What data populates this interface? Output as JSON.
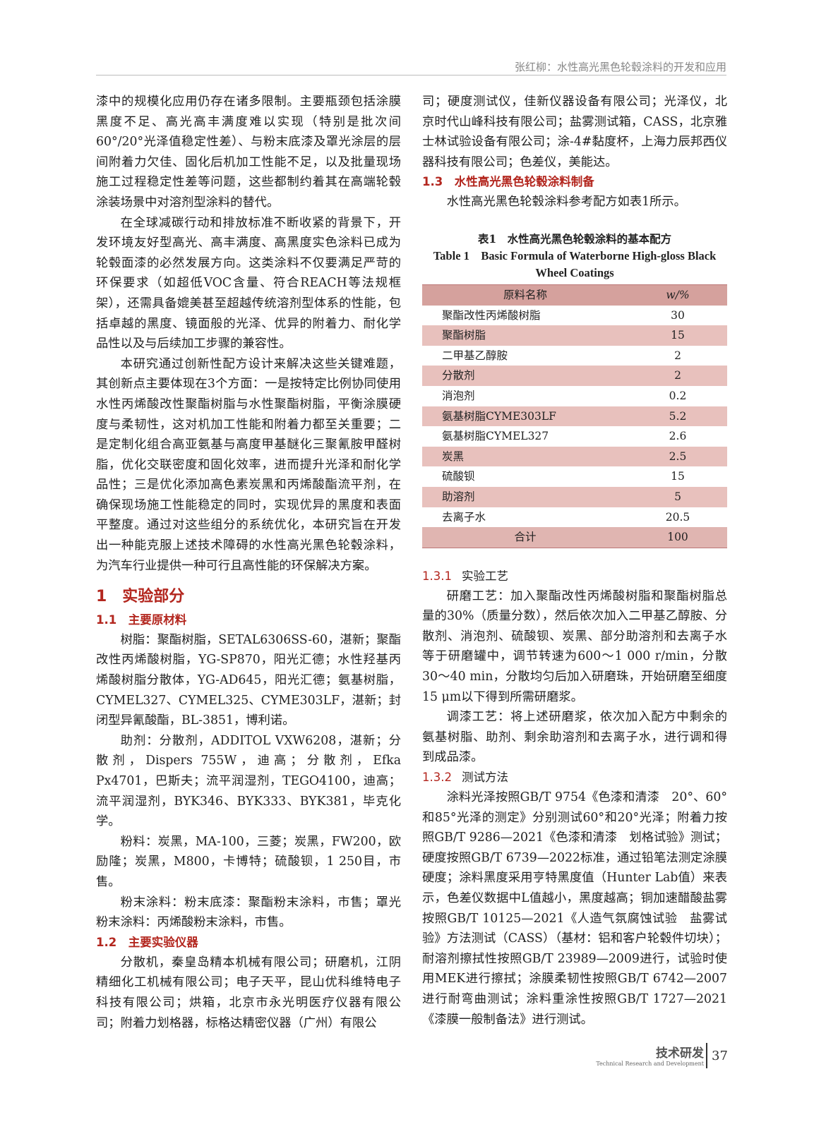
{
  "header": {
    "running_title": "张红柳：水性高光黑色轮毂涂料的开发和应用"
  },
  "left": {
    "p1": "漆中的规模化应用仍存在诸多限制。主要瓶颈包括涂膜黑度不足、高光高丰满度难以实现（特别是批次间60°/20°光泽值稳定性差）、与粉末底漆及罩光涂层的层间附着力欠佳、固化后机加工性能不足，以及批量现场施工过程稳定性差等问题，这些都制约着其在高端轮毂涂装场景中对溶剂型涂料的替代。",
    "p2": "在全球减碳行动和排放标准不断收紧的背景下，开发环境友好型高光、高丰满度、高黑度实色涂料已成为轮毂面漆的必然发展方向。这类涂料不仅要满足严苛的环保要求（如超低VOC含量、符合REACH等法规框架），还需具备媲美甚至超越传统溶剂型体系的性能，包括卓越的黑度、镜面般的光泽、优异的附着力、耐化学品性以及与后续加工步骤的兼容性。",
    "p3": "本研究通过创新性配方设计来解决这些关键难题，其创新点主要体现在3个方面：一是按特定比例协同使用水性丙烯酸改性聚酯树脂与水性聚酯树脂，平衡涂膜硬度与柔韧性，这对机加工性能和附着力都至关重要；二是定制化组合高亚氨基与高度甲基醚化三聚氰胺甲醛树脂，优化交联密度和固化效率，进而提升光泽和耐化学品性；三是优化添加高色素炭黑和丙烯酸酯流平剂，在确保现场施工性能稳定的同时，实现优异的黑度和表面平整度。通过对这些组分的系统优化，本研究旨在开发出一种能克服上述技术障碍的水性高光黑色轮毂涂料，为汽车行业提供一种可行且高性能的环保解决方案。",
    "h1": "1　实验部分",
    "h1_1": "1.1　主要原材料",
    "p4": "树脂：聚酯树脂，SETAL6306SS-60，湛新；聚酯改性丙烯酸树脂，YG-SP870，阳光汇德；水性羟基丙烯酸树脂分散体，YG-AD645，阳光汇德；氨基树脂，CYMEL327、CYMEL325、CYME303LF，湛新；封闭型异氰酸酯，BL-3851，博利诺。",
    "p5": "助剂：分散剂，ADDITOL VXW6208，湛新；分散剂，Dispers 755W，迪高；分散剂，Efka Px4701，巴斯夫；流平润湿剂，TEGO4100，迪高；流平润湿剂，BYK346、BYK333、BYK381，毕克化学。",
    "p6": "粉料：炭黑，MA-100，三菱；炭黑，FW200，欧励隆；炭黑，M800，卡博特；硫酸钡，1 250目，市售。",
    "p7": "粉末涂料：粉末底漆：聚酯粉末涂料，市售；罩光粉末涂料：丙烯酸粉末涂料，市售。",
    "h1_2": "1.2　主要实验仪器",
    "p8": "分散机，秦皇岛精本机械有限公司；研磨机，江阴精细化工机械有限公司；电子天平，昆山优科维特电子科技有限公司；烘箱，北京市永光明医疗仪器有限公司；附着力划格器，标格达精密仪器（广州）有限公"
  },
  "right": {
    "p1": "司；硬度测试仪，佳新仪器设备有限公司；光泽仪，北京时代山峰科技有限公司；盐雾测试箱，CASS，北京雅士林试验设备有限公司；涂-4#黏度杯，上海力辰邦西仪器科技有限公司；色差仪，美能达。",
    "h1_3": "1.3　水性高光黑色轮毂涂料制备",
    "p2": "水性高光黑色轮毂涂料参考配方如表1所示。",
    "table": {
      "caption_cn": "表1　水性高光黑色轮毂涂料的基本配方",
      "caption_en": "Table 1　Basic Formula of Waterborne High-gloss Black Wheel Coatings",
      "headers": [
        "原料名称",
        "w/%"
      ],
      "rows": [
        {
          "name": "聚酯改性丙烯酸树脂",
          "value": "30"
        },
        {
          "name": "聚酯树脂",
          "value": "15"
        },
        {
          "name": "二甲基乙醇胺",
          "value": "2"
        },
        {
          "name": "分散剂",
          "value": "2"
        },
        {
          "name": "消泡剂",
          "value": "0.2"
        },
        {
          "name": "氨基树脂CYME303LF",
          "value": "5.2"
        },
        {
          "name": "氨基树脂CYMEL327",
          "value": "2.6"
        },
        {
          "name": "炭黑",
          "value": "2.5"
        },
        {
          "name": "硫酸钡",
          "value": "15"
        },
        {
          "name": "助溶剂",
          "value": "5"
        },
        {
          "name": "去离子水",
          "value": "20.5"
        }
      ],
      "total": {
        "name": "合计",
        "value": "100"
      }
    },
    "h131_num": "1.3.1",
    "h131_title": "实验工艺",
    "p3": "研磨工艺：加入聚酯改性丙烯酸树脂和聚酯树脂总量的30%（质量分数），然后依次加入二甲基乙醇胺、分散剂、消泡剂、硫酸钡、炭黑、部分助溶剂和去离子水等于研磨罐中，调节转速为600～1 000 r/min，分散30～40 min，分散均匀后加入研磨珠，开始研磨至细度15 μm以下得到所需研磨浆。",
    "p4": "调漆工艺：将上述研磨浆，依次加入配方中剩余的氨基树脂、助剂、剩余助溶剂和去离子水，进行调和得到成品漆。",
    "h132_num": "1.3.2",
    "h132_title": "测试方法",
    "p5": "涂料光泽按照GB/T 9754《色漆和清漆　20°、60°和85°光泽的测定》分别测试60°和20°光泽；附着力按照GB/T 9286—2021《色漆和清漆　划格试验》测试；硬度按照GB/T 6739—2022标准，通过铅笔法测定涂膜硬度；涂料黑度采用亨特黑度值（Hunter Lab值）来表示，色差仪数据中L值越小，黑度越高；铜加速醋酸盐雾按照GB/T 10125—2021《人造气氛腐蚀试验　盐雾试验》方法测试（CASS）（基材：铝和客户轮毂件切块）；耐溶剂擦拭性按照GB/T 23989—2009进行，试验时使用MEK进行擦拭；涂膜柔韧性按照GB/T 6742—2007进行耐弯曲测试；涂料重涂性按照GB/T 1727—2021《漆膜一般制备法》进行测试。"
  },
  "footer": {
    "section_cn": "技术研发",
    "section_en": "Technical Research and Development",
    "page": "37"
  }
}
